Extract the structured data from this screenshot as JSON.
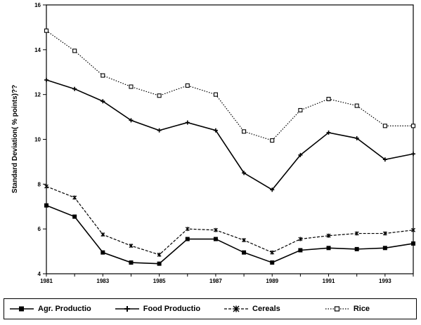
{
  "chart_data": {
    "type": "line",
    "title": "",
    "xlabel": "",
    "ylabel": "Standard Deviation( % points)??",
    "x": [
      1981,
      1982,
      1983,
      1984,
      1985,
      1986,
      1987,
      1988,
      1989,
      1990,
      1991,
      1992,
      1993,
      1994
    ],
    "x_tick_labels": [
      "1981",
      "1983",
      "1985",
      "1987",
      "1989",
      "1991",
      "1993"
    ],
    "x_tick_values": [
      1981,
      1983,
      1985,
      1987,
      1989,
      1991,
      1993
    ],
    "y_tick_labels": [
      "4",
      "6",
      "8",
      "10",
      "12",
      "14",
      "16"
    ],
    "y_tick_values": [
      4,
      6,
      8,
      10,
      12,
      14,
      16
    ],
    "xlim": [
      1981,
      1994
    ],
    "ylim": [
      4,
      16
    ],
    "grid": false,
    "legend_placement": "bottom",
    "series": [
      {
        "name": "Agr. Productio",
        "style": "solid",
        "marker": "square",
        "color": "#000000",
        "values": [
          7.05,
          6.55,
          4.95,
          4.5,
          4.45,
          5.55,
          5.55,
          4.95,
          4.5,
          5.05,
          5.15,
          5.1,
          5.15,
          5.35
        ]
      },
      {
        "name": "Food Productio",
        "style": "solid",
        "marker": "plus",
        "color": "#000000",
        "values": [
          12.65,
          12.25,
          11.7,
          10.85,
          10.4,
          10.75,
          10.4,
          8.5,
          7.75,
          9.3,
          10.3,
          10.05,
          9.1,
          9.35
        ]
      },
      {
        "name": "Cereals",
        "style": "dashed",
        "marker": "star",
        "color": "#000000",
        "values": [
          7.9,
          7.4,
          5.75,
          5.25,
          4.85,
          6.0,
          5.95,
          5.5,
          4.95,
          5.55,
          5.7,
          5.8,
          5.8,
          5.95
        ]
      },
      {
        "name": "Rice",
        "style": "dotted",
        "marker": "square-open",
        "color": "#000000",
        "values": [
          14.85,
          13.95,
          12.85,
          12.35,
          11.95,
          12.4,
          12.0,
          10.35,
          9.95,
          11.3,
          11.8,
          11.5,
          10.6,
          10.6
        ]
      }
    ]
  }
}
